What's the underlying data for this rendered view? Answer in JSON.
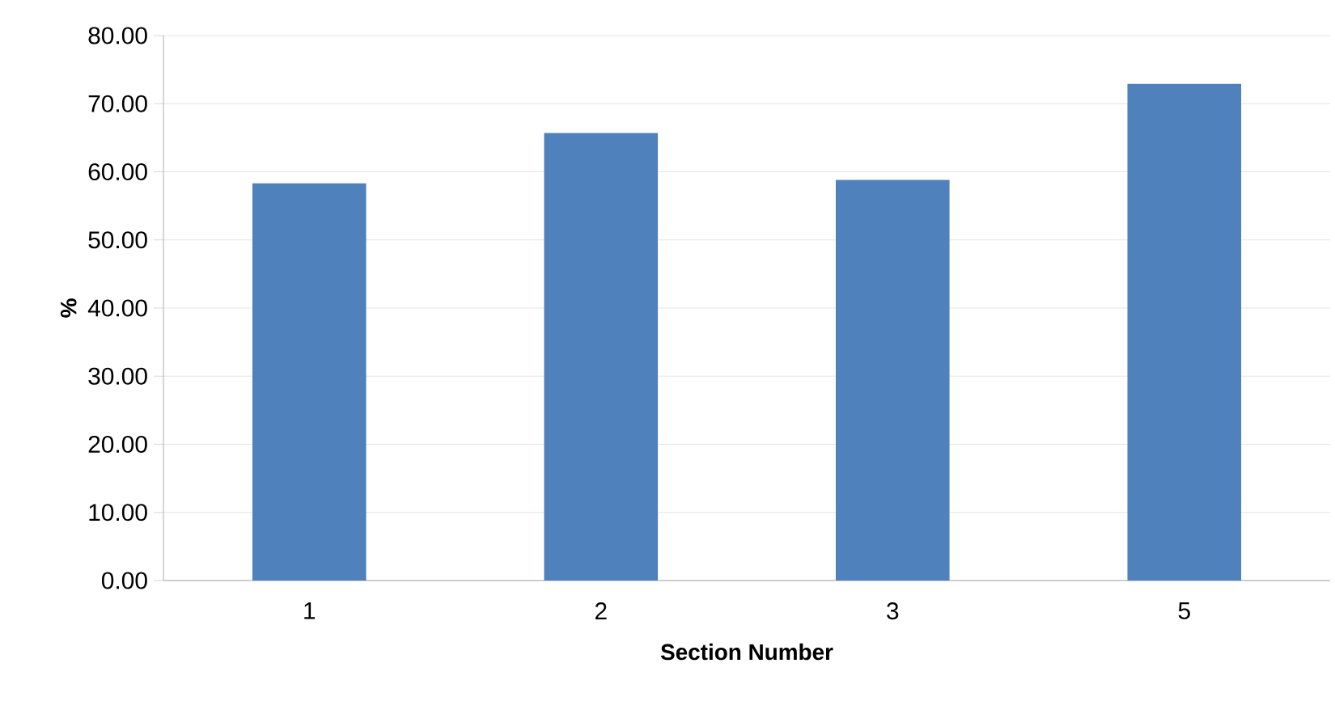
{
  "chart_data": {
    "type": "bar",
    "xlabel": "Section Number",
    "ylabel": "%",
    "categories": [
      "1",
      "2",
      "3",
      "5"
    ],
    "values": [
      58.3,
      65.7,
      58.8,
      72.9
    ],
    "color": "#4f81bd",
    "ylim": [
      0,
      80
    ],
    "yticks": [
      {
        "value": 0,
        "label": "0.00"
      },
      {
        "value": 10,
        "label": "10.00"
      },
      {
        "value": 20,
        "label": "20.00"
      },
      {
        "value": 30,
        "label": "30.00"
      },
      {
        "value": 40,
        "label": "40.00"
      },
      {
        "value": 50,
        "label": "50.00"
      },
      {
        "value": 60,
        "label": "60.00"
      },
      {
        "value": 70,
        "label": "70.00"
      },
      {
        "value": 80,
        "label": "80.00"
      }
    ],
    "grid": "y"
  }
}
